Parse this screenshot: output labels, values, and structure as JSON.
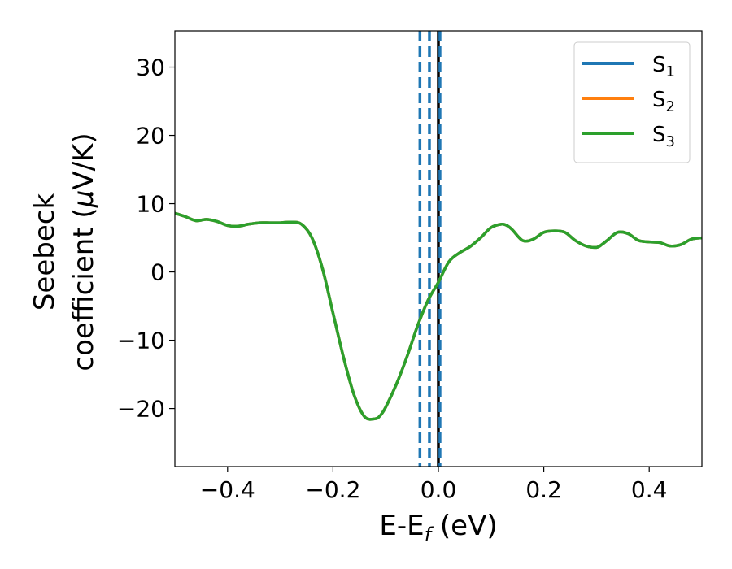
{
  "chart_data": {
    "type": "line",
    "xlabel": {
      "main": "E-E",
      "sub": "f",
      "unit": " (eV)"
    },
    "ylabel": {
      "line1": "Seebeck",
      "line2_pre": "coefficient  (",
      "mu": "μ",
      "line2_post": "V/K)"
    },
    "xlim": [
      -0.5,
      0.5
    ],
    "ylim": [
      -28.5,
      35.3
    ],
    "xticks": [
      -0.4,
      -0.2,
      0.0,
      0.2,
      0.4
    ],
    "xtick_labels": [
      "−0.4",
      "−0.2",
      "0.0",
      "0.2",
      "0.4"
    ],
    "yticks": [
      -20,
      -10,
      0,
      10,
      20,
      30
    ],
    "ytick_labels": [
      "−20",
      "−10",
      "0",
      "10",
      "20",
      "30"
    ],
    "grid": false,
    "legend_position": "top-right",
    "vertical_lines": [
      {
        "x": -0.035,
        "style": "dashed",
        "color": "#1f77b4"
      },
      {
        "x": -0.017,
        "style": "dashed",
        "color": "#1f77b4"
      },
      {
        "x": 0.0,
        "style": "solid",
        "color": "#000000"
      },
      {
        "x": 0.003,
        "style": "dashed",
        "color": "#1f77b4"
      }
    ],
    "x": [
      -0.5,
      -0.48,
      -0.46,
      -0.44,
      -0.42,
      -0.4,
      -0.38,
      -0.36,
      -0.34,
      -0.32,
      -0.3,
      -0.28,
      -0.26,
      -0.24,
      -0.22,
      -0.2,
      -0.18,
      -0.16,
      -0.14,
      -0.12,
      -0.11,
      -0.1,
      -0.08,
      -0.06,
      -0.04,
      -0.02,
      0.0,
      0.02,
      0.04,
      0.06,
      0.08,
      0.1,
      0.12,
      0.13,
      0.14,
      0.16,
      0.18,
      0.2,
      0.22,
      0.24,
      0.26,
      0.28,
      0.3,
      0.31,
      0.32,
      0.34,
      0.36,
      0.38,
      0.4,
      0.42,
      0.44,
      0.46,
      0.48,
      0.5
    ],
    "series": [
      {
        "name": "S",
        "sub": "1",
        "color": "#1f77b4",
        "values": [
          8.6,
          8.1,
          7.5,
          7.7,
          7.4,
          6.8,
          6.7,
          7.0,
          7.2,
          7.2,
          7.2,
          7.3,
          7.0,
          5.0,
          0.5,
          -6.0,
          -12.5,
          -18.0,
          -21.2,
          -21.5,
          -21.0,
          -19.8,
          -16.5,
          -12.5,
          -8.0,
          -4.2,
          -1.5,
          1.5,
          2.8,
          3.7,
          5.0,
          6.5,
          7.0,
          6.8,
          6.2,
          4.6,
          4.8,
          5.8,
          6.0,
          5.8,
          4.6,
          3.8,
          3.6,
          4.0,
          4.6,
          5.8,
          5.6,
          4.6,
          4.4,
          4.3,
          3.8,
          4.0,
          4.8,
          5.0
        ]
      },
      {
        "name": "S",
        "sub": "2",
        "color": "#ff7f0e",
        "values": [
          8.6,
          8.1,
          7.5,
          7.7,
          7.4,
          6.8,
          6.7,
          7.0,
          7.2,
          7.2,
          7.2,
          7.3,
          7.0,
          5.0,
          0.5,
          -6.0,
          -12.5,
          -18.0,
          -21.2,
          -21.5,
          -21.0,
          -19.8,
          -16.5,
          -12.5,
          -8.0,
          -4.2,
          -1.5,
          1.5,
          2.8,
          3.7,
          5.0,
          6.5,
          7.0,
          6.8,
          6.2,
          4.6,
          4.8,
          5.8,
          6.0,
          5.8,
          4.6,
          3.8,
          3.6,
          4.0,
          4.6,
          5.8,
          5.6,
          4.6,
          4.4,
          4.3,
          3.8,
          4.0,
          4.8,
          5.0
        ]
      },
      {
        "name": "S",
        "sub": "3",
        "color": "#2ca02c",
        "values": [
          8.6,
          8.1,
          7.5,
          7.7,
          7.4,
          6.8,
          6.7,
          7.0,
          7.2,
          7.2,
          7.2,
          7.3,
          7.0,
          5.0,
          0.5,
          -6.0,
          -12.5,
          -18.0,
          -21.2,
          -21.5,
          -21.0,
          -19.8,
          -16.5,
          -12.5,
          -8.0,
          -4.2,
          -1.5,
          1.5,
          2.8,
          3.7,
          5.0,
          6.5,
          7.0,
          6.8,
          6.2,
          4.6,
          4.8,
          5.8,
          6.0,
          5.8,
          4.6,
          3.8,
          3.6,
          4.0,
          4.6,
          5.8,
          5.6,
          4.6,
          4.4,
          4.3,
          3.8,
          4.0,
          4.8,
          5.0
        ]
      }
    ]
  }
}
